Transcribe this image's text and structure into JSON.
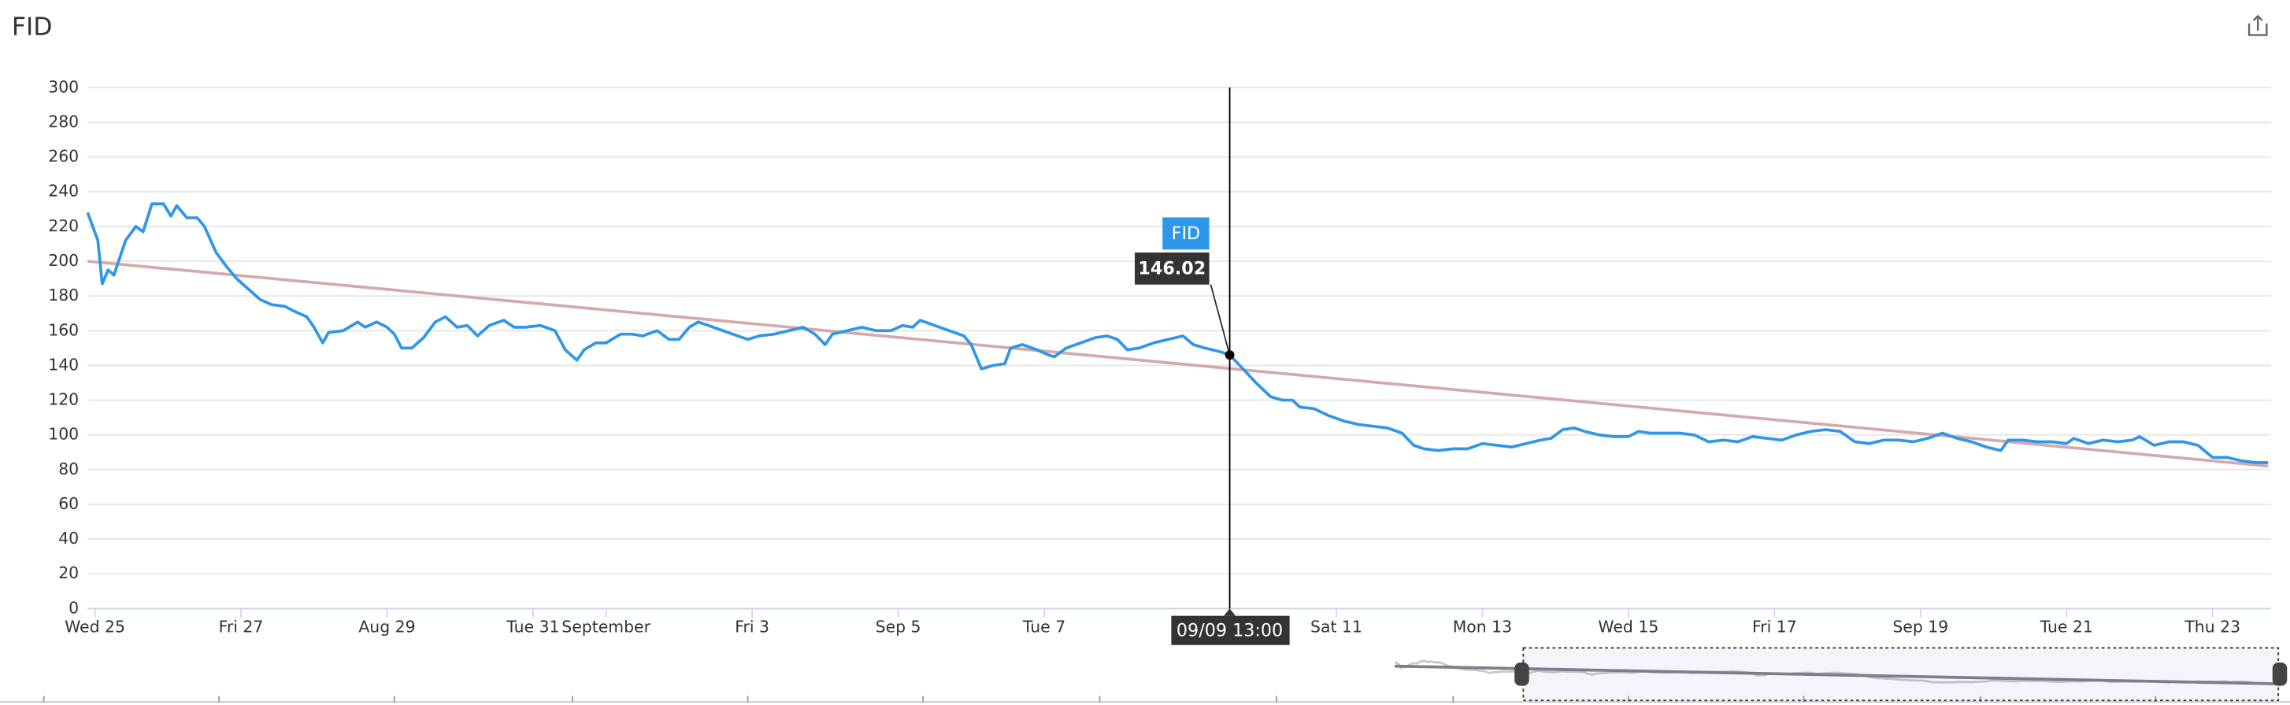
{
  "chart_data": {
    "type": "line",
    "title": "FID",
    "series": [
      {
        "name": "FID",
        "color": "#2f96e8",
        "x": [
          -0.1,
          0.04,
          0.1,
          0.18,
          0.26,
          0.42,
          0.56,
          0.66,
          0.78,
          0.94,
          1.04,
          1.12,
          1.26,
          1.4,
          1.5,
          1.66,
          1.8,
          1.94,
          2.1,
          2.26,
          2.42,
          2.6,
          2.74,
          2.9,
          3.0,
          3.12,
          3.2,
          3.4,
          3.6,
          3.7,
          3.86,
          4.0,
          4.1,
          4.2,
          4.34,
          4.5,
          4.66,
          4.8,
          4.96,
          5.1,
          5.24,
          5.4,
          5.6,
          5.74,
          5.9,
          6.1,
          6.3,
          6.44,
          6.6,
          6.7,
          6.86,
          7.0,
          7.2,
          7.36,
          7.5,
          7.7,
          7.86,
          8.0,
          8.14,
          8.26,
          8.4,
          8.6,
          8.8,
          8.94,
          9.1,
          9.3,
          9.5,
          9.7,
          9.86,
          10.0,
          10.1,
          10.3,
          10.5,
          10.7,
          10.9,
          11.06,
          11.2,
          11.3,
          11.5,
          11.7,
          11.9,
          12.0,
          12.14,
          12.3,
          12.46,
          12.54,
          12.7,
          12.9,
          13.06,
          13.14,
          13.3,
          13.5,
          13.7,
          13.86,
          14.0,
          14.14,
          14.3,
          14.5,
          14.7,
          14.9,
          15.04,
          15.2,
          15.4,
          15.54,
          15.7,
          15.9,
          16.1,
          16.26,
          16.4,
          16.5,
          16.7,
          16.9,
          17.1,
          17.3,
          17.5,
          17.7,
          17.9,
          18.06,
          18.2,
          18.4,
          18.6,
          18.8,
          19.0,
          19.2,
          19.4,
          19.6,
          19.8,
          19.94,
          20.1,
          20.26,
          20.4,
          20.6,
          20.8,
          21.0,
          21.14,
          21.3,
          21.5,
          21.7,
          21.9,
          22.1,
          22.3,
          22.5,
          22.7,
          22.9,
          23.1,
          23.3,
          23.5,
          23.7,
          23.9,
          24.1,
          24.3,
          24.5,
          24.7,
          24.9,
          25.1,
          25.3,
          25.5,
          25.7,
          25.9,
          26.1,
          26.2,
          26.4,
          26.6,
          26.8,
          27.0,
          27.1,
          27.3,
          27.5,
          27.7,
          27.9,
          28.0,
          28.2,
          28.4,
          28.6,
          28.8,
          29.0,
          29.2,
          29.4,
          29.6,
          29.76
        ],
        "values": [
          228,
          212,
          187,
          195,
          192,
          212,
          220,
          217,
          233,
          233,
          226,
          232,
          225,
          225,
          220,
          205,
          197,
          190,
          184,
          178,
          175,
          174,
          171,
          168,
          162,
          153,
          159,
          160,
          165,
          162,
          165,
          162,
          158,
          150,
          150,
          156,
          165,
          168,
          162,
          163,
          157,
          163,
          166,
          162,
          162,
          163,
          160,
          149,
          143,
          149,
          153,
          153,
          158,
          158,
          157,
          160,
          155,
          155,
          162,
          165,
          163,
          160,
          157,
          155,
          157,
          158,
          160,
          162,
          158,
          152,
          158,
          160,
          162,
          160,
          160,
          163,
          162,
          166,
          163,
          160,
          157,
          152,
          138,
          140,
          141,
          150,
          152,
          149,
          146,
          145,
          150,
          153,
          156,
          157,
          155,
          149,
          150,
          153,
          155,
          157,
          152,
          150,
          148,
          146.02,
          139,
          130,
          122,
          120,
          120,
          116,
          115,
          111,
          108,
          106,
          105,
          104,
          101,
          94,
          92,
          91,
          92,
          92,
          95,
          94,
          93,
          95,
          97,
          98,
          103,
          104,
          102,
          100,
          99,
          99,
          102,
          101,
          101,
          101,
          100,
          96,
          97,
          96,
          99,
          98,
          97,
          100,
          102,
          103,
          102,
          96,
          95,
          97,
          97,
          96,
          98,
          101,
          98,
          96,
          93,
          91,
          97,
          97,
          96,
          96,
          95,
          98,
          95,
          97,
          96,
          97,
          99,
          94,
          96,
          96,
          94,
          87,
          87,
          85,
          84,
          84
        ]
      }
    ],
    "trend": {
      "color": "#d4aaa8",
      "x": [
        -0.1,
        29.76
      ],
      "values": [
        200,
        82
      ]
    },
    "tooltip": {
      "x": 15.54,
      "label": "09/09 13:00",
      "value": 146.02
    },
    "xlim": [
      -0.1,
      29.8
    ],
    "xticks": [
      {
        "value": 0,
        "label": "Wed 25"
      },
      {
        "value": 2,
        "label": "Fri 27"
      },
      {
        "value": 4,
        "label": "Aug 29"
      },
      {
        "value": 6,
        "label": "Tue 31"
      },
      {
        "value": 7,
        "label": "September"
      },
      {
        "value": 9,
        "label": "Fri 3"
      },
      {
        "value": 11,
        "label": "Sep 5"
      },
      {
        "value": 13,
        "label": "Tue 7"
      },
      {
        "value": 17,
        "label": "Sat 11"
      },
      {
        "value": 19,
        "label": "Mon 13"
      },
      {
        "value": 21,
        "label": "Wed 15"
      },
      {
        "value": 23,
        "label": "Fri 17"
      },
      {
        "value": 25,
        "label": "Sep 19"
      },
      {
        "value": 27,
        "label": "Tue 21"
      },
      {
        "value": 29,
        "label": "Thu 23"
      }
    ],
    "ylim": [
      0,
      300
    ],
    "yticks": [
      0,
      20,
      40,
      60,
      80,
      100,
      120,
      140,
      160,
      180,
      200,
      220,
      240,
      260,
      280,
      300
    ],
    "grid": true
  }
}
